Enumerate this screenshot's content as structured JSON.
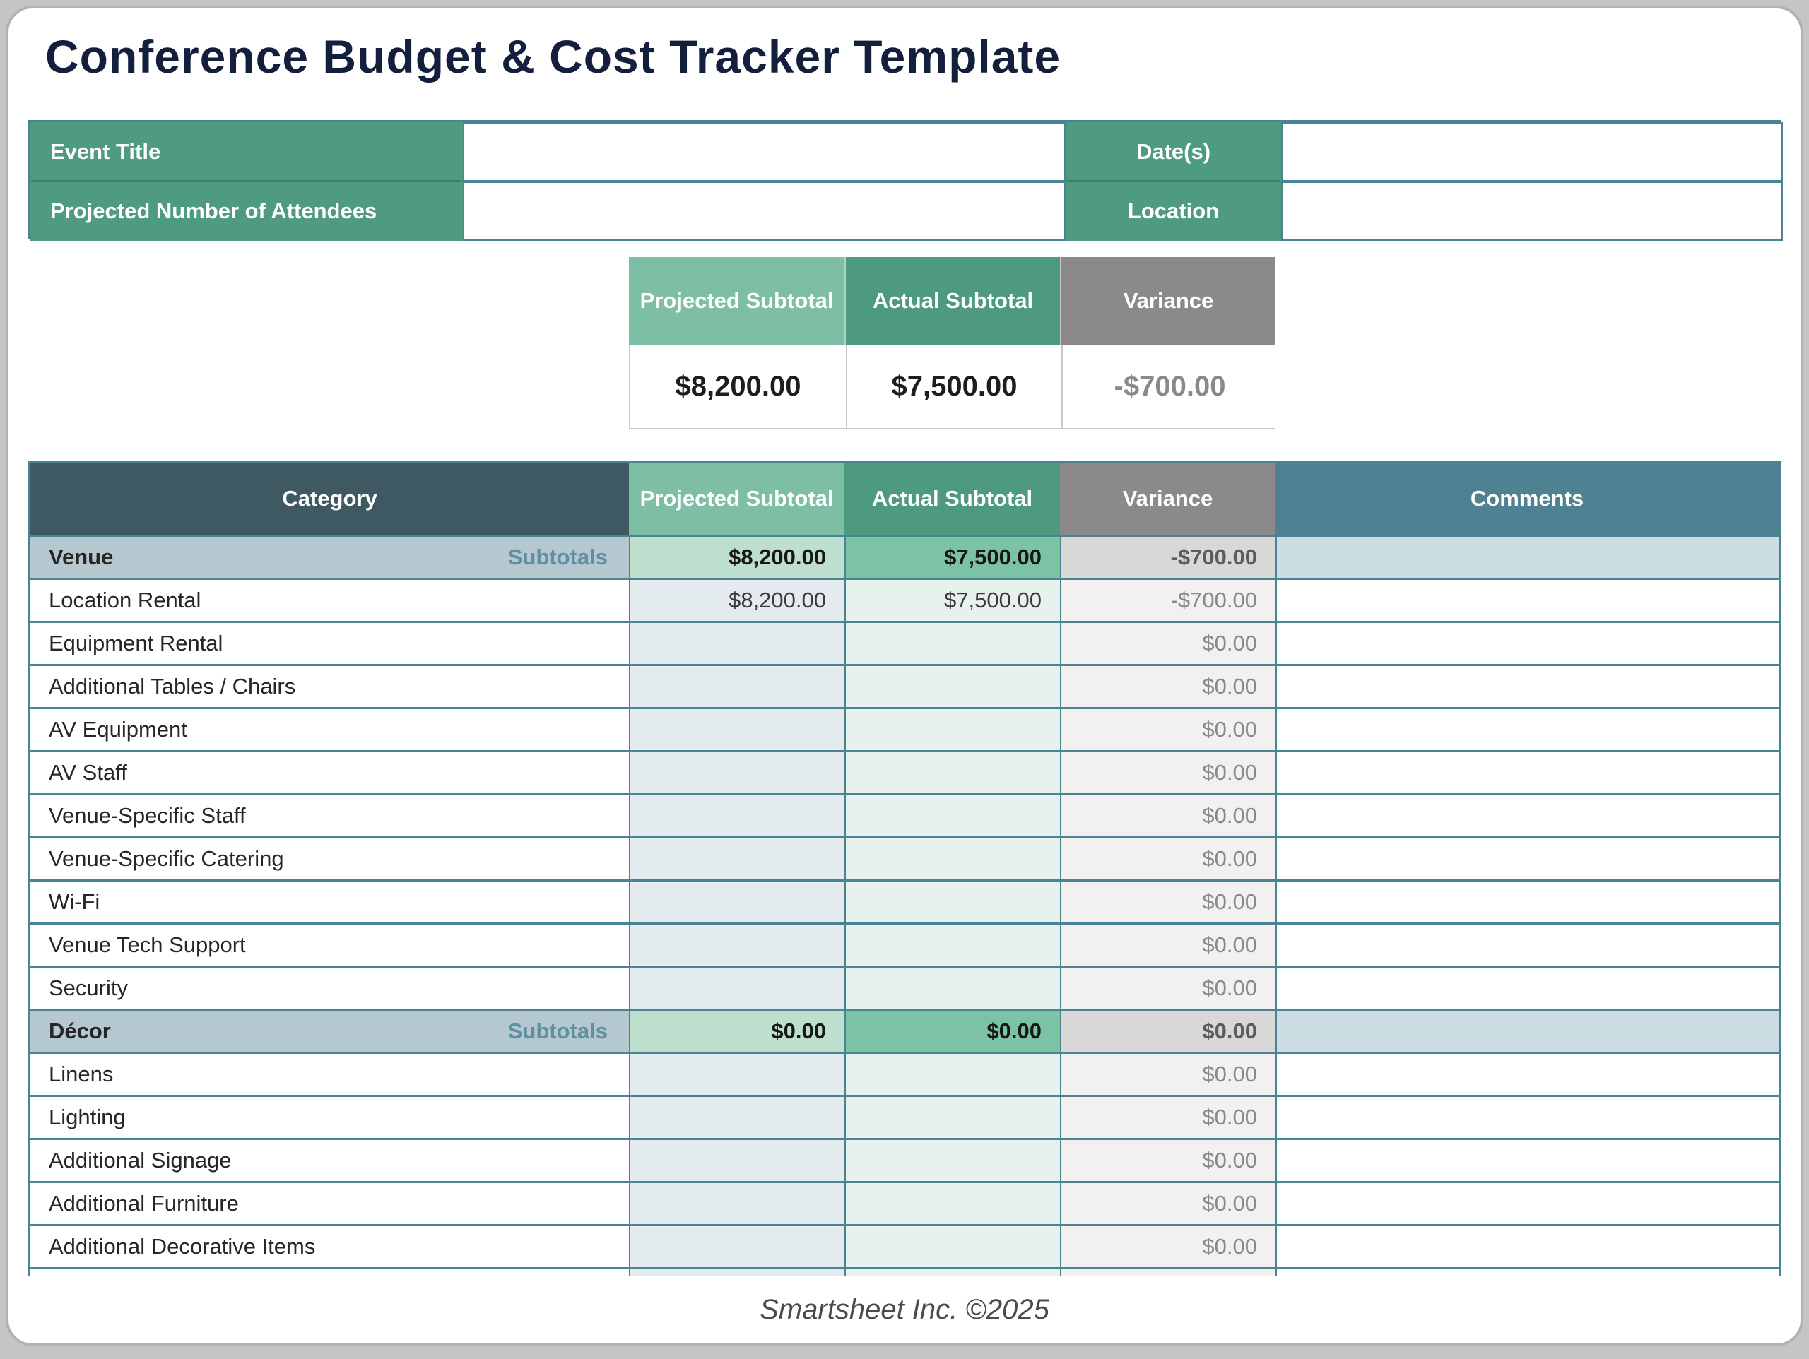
{
  "page": {
    "title": "Conference Budget & Cost Tracker Template",
    "footer": "Smartsheet Inc. ©2025"
  },
  "colors": {
    "brand_green": "#4f9b81",
    "light_green": "#7ebea4",
    "dark_green": "#4e9a80",
    "header_gray": "#8b8989",
    "category_slate": "#3e5961",
    "comments_teal": "#4e8192",
    "border_teal": "#4a8394",
    "subtotal_row_blue": "#b5c8d0",
    "title_navy": "#141f3e",
    "variance_text_gray": "#8a8888"
  },
  "info_table": {
    "event_title_label": "Event Title",
    "event_title_value": "",
    "dates_label": "Date(s)",
    "dates_value": "",
    "attendees_label": "Projected Number of Attendees",
    "attendees_value": "",
    "location_label": "Location",
    "location_value": ""
  },
  "summary": {
    "projected_header": "Projected Subtotal",
    "actual_header": "Actual Subtotal",
    "variance_header": "Variance",
    "projected_value": "$8,200.00",
    "actual_value": "$7,500.00",
    "variance_value": "-$700.00"
  },
  "budget_table": {
    "headers": {
      "category": "Category",
      "projected": "Projected Subtotal",
      "actual": "Actual Subtotal",
      "variance": "Variance",
      "comments": "Comments"
    },
    "rows": [
      {
        "type": "subtotal",
        "category": "Venue",
        "subtotals_label": "Subtotals",
        "projected": "$8,200.00",
        "actual": "$7,500.00",
        "variance": "-$700.00",
        "comment": ""
      },
      {
        "type": "detail",
        "category": "Location Rental",
        "projected": "$8,200.00",
        "actual": "$7,500.00",
        "variance": "-$700.00",
        "comment": ""
      },
      {
        "type": "detail",
        "category": "Equipment Rental",
        "projected": "",
        "actual": "",
        "variance": "$0.00",
        "comment": ""
      },
      {
        "type": "detail",
        "category": "Additional Tables / Chairs",
        "projected": "",
        "actual": "",
        "variance": "$0.00",
        "comment": ""
      },
      {
        "type": "detail",
        "category": "AV Equipment",
        "projected": "",
        "actual": "",
        "variance": "$0.00",
        "comment": ""
      },
      {
        "type": "detail",
        "category": "AV Staff",
        "projected": "",
        "actual": "",
        "variance": "$0.00",
        "comment": ""
      },
      {
        "type": "detail",
        "category": "Venue-Specific Staff",
        "projected": "",
        "actual": "",
        "variance": "$0.00",
        "comment": ""
      },
      {
        "type": "detail",
        "category": "Venue-Specific Catering",
        "projected": "",
        "actual": "",
        "variance": "$0.00",
        "comment": ""
      },
      {
        "type": "detail",
        "category": "Wi-Fi",
        "projected": "",
        "actual": "",
        "variance": "$0.00",
        "comment": ""
      },
      {
        "type": "detail",
        "category": "Venue Tech Support",
        "projected": "",
        "actual": "",
        "variance": "$0.00",
        "comment": ""
      },
      {
        "type": "detail",
        "category": "Security",
        "projected": "",
        "actual": "",
        "variance": "$0.00",
        "comment": ""
      },
      {
        "type": "subtotal",
        "category": "Décor",
        "subtotals_label": "Subtotals",
        "projected": "$0.00",
        "actual": "$0.00",
        "variance": "$0.00",
        "comment": ""
      },
      {
        "type": "detail",
        "category": "Linens",
        "projected": "",
        "actual": "",
        "variance": "$0.00",
        "comment": ""
      },
      {
        "type": "detail",
        "category": "Lighting",
        "projected": "",
        "actual": "",
        "variance": "$0.00",
        "comment": ""
      },
      {
        "type": "detail",
        "category": "Additional Signage",
        "projected": "",
        "actual": "",
        "variance": "$0.00",
        "comment": ""
      },
      {
        "type": "detail",
        "category": "Additional Furniture",
        "projected": "",
        "actual": "",
        "variance": "$0.00",
        "comment": ""
      },
      {
        "type": "detail",
        "category": "Additional Decorative Items",
        "projected": "",
        "actual": "",
        "variance": "$0.00",
        "comment": ""
      }
    ]
  }
}
